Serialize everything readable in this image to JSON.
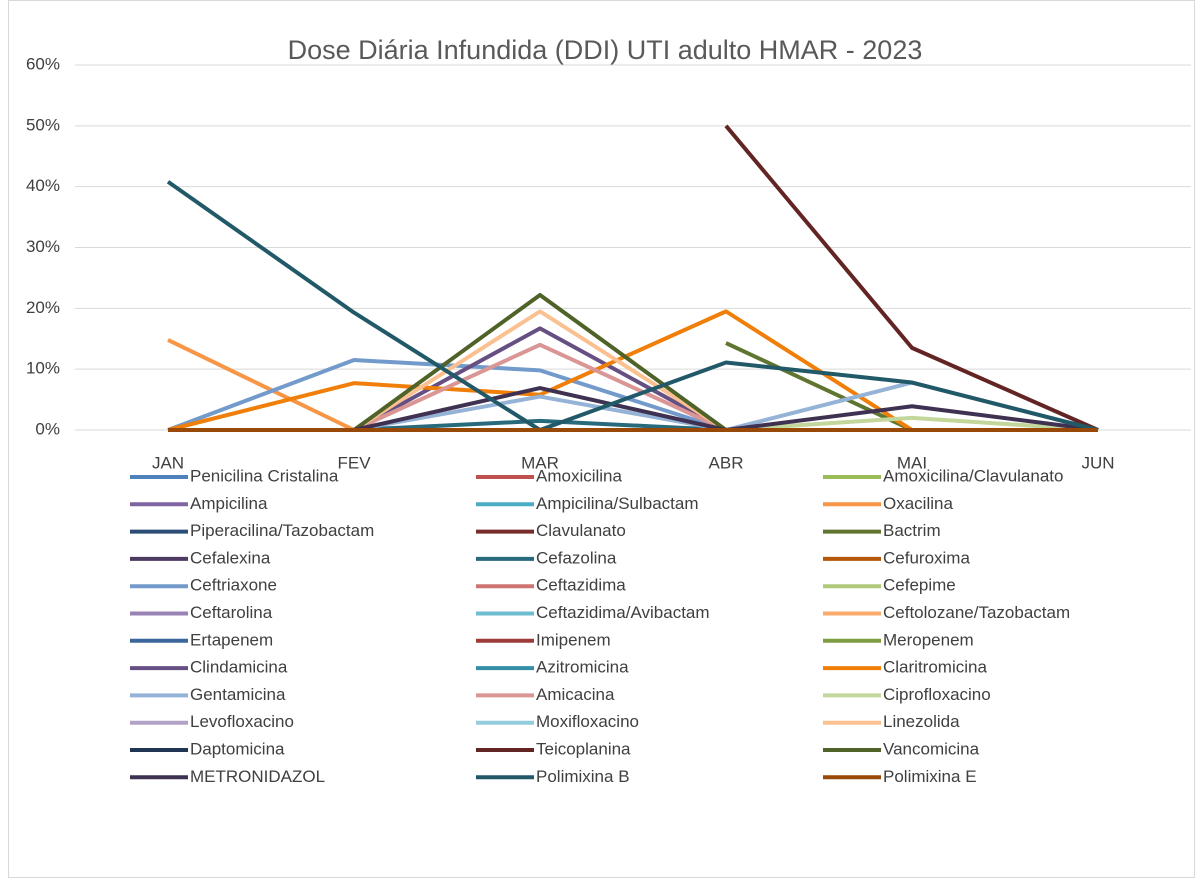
{
  "chart_data": {
    "type": "line",
    "title": "Dose Diária Infundida (DDI) UTI adulto HMAR - 2023",
    "categories": [
      "JAN",
      "FEV",
      "MAR",
      "ABR",
      "MAI",
      "JUN"
    ],
    "ylim": [
      0,
      60
    ],
    "yticks": [
      {
        "value": 0,
        "label": "0%"
      },
      {
        "value": 10,
        "label": "10%"
      },
      {
        "value": 20,
        "label": "20%"
      },
      {
        "value": 30,
        "label": "30%"
      },
      {
        "value": 40,
        "label": "40%"
      },
      {
        "value": 50,
        "label": "50%"
      },
      {
        "value": 60,
        "label": "60%"
      }
    ],
    "grid": true,
    "legend": "bottom",
    "series": [
      {
        "name": "Penicilina Cristalina",
        "color": "#4f81bd",
        "values": [
          0,
          0,
          0,
          0,
          0,
          0
        ]
      },
      {
        "name": "Amoxicilina",
        "color": "#c0504d",
        "values": [
          0,
          0,
          0,
          0,
          0,
          0
        ]
      },
      {
        "name": "Amoxicilina/Clavulanato",
        "color": "#9bbb59",
        "values": [
          0,
          0,
          0,
          0,
          0,
          0
        ]
      },
      {
        "name": "Ampicilina",
        "color": "#8064a2",
        "values": [
          0,
          0,
          0,
          0,
          0,
          0
        ]
      },
      {
        "name": "Ampicilina/Sulbactam",
        "color": "#4bacc6",
        "values": [
          0,
          0,
          0,
          0,
          0,
          0
        ]
      },
      {
        "name": "Oxacilina",
        "color": "#f79646",
        "values": [
          14.8,
          0,
          0,
          0,
          0,
          0
        ]
      },
      {
        "name": "Piperacilina/Tazobactam",
        "color": "#2c4d75",
        "values": [
          0,
          0,
          0,
          0,
          0,
          0
        ]
      },
      {
        "name": "Clavulanato",
        "color": "#772c2a",
        "values": [
          0,
          0,
          0,
          0,
          0,
          0
        ]
      },
      {
        "name": "Bactrim",
        "color": "#5f7530",
        "values": [
          null,
          null,
          null,
          14.3,
          0,
          null
        ]
      },
      {
        "name": "Cefalexina",
        "color": "#4d3b62",
        "values": [
          0,
          0,
          0,
          0,
          0,
          0
        ]
      },
      {
        "name": "Cefazolina",
        "color": "#276a7c",
        "values": [
          0,
          0,
          1.5,
          0,
          0,
          0
        ]
      },
      {
        "name": "Cefuroxima",
        "color": "#b65708",
        "values": [
          0,
          0,
          0,
          0,
          0,
          0
        ]
      },
      {
        "name": "Ceftriaxone",
        "color": "#729aca",
        "values": [
          0,
          11.5,
          9.8,
          0,
          0,
          0
        ]
      },
      {
        "name": "Ceftazidima",
        "color": "#cd7371",
        "values": [
          0,
          0,
          0,
          0,
          0,
          0
        ]
      },
      {
        "name": "Cefepime",
        "color": "#afc97a",
        "values": [
          0,
          0,
          0,
          0,
          0,
          0
        ]
      },
      {
        "name": "Ceftarolina",
        "color": "#9983b5",
        "values": [
          0,
          0,
          0,
          0,
          0,
          0
        ]
      },
      {
        "name": "Ceftazidima/Avibactam",
        "color": "#6fbdd1",
        "values": [
          0,
          0,
          0,
          0,
          0,
          0
        ]
      },
      {
        "name": "Ceftolozane/Tazobactam",
        "color": "#f9ab6b",
        "values": [
          0,
          0,
          0,
          0,
          0,
          0
        ]
      },
      {
        "name": "Ertapenem",
        "color": "#3a679c",
        "values": [
          0,
          0,
          0,
          0,
          0,
          0
        ]
      },
      {
        "name": "Imipenem",
        "color": "#9e3b38",
        "values": [
          0,
          0,
          0,
          0,
          0,
          0
        ]
      },
      {
        "name": "Meropenem",
        "color": "#7e9c40",
        "values": [
          0,
          0,
          0,
          0,
          0,
          0
        ]
      },
      {
        "name": "Clindamicina",
        "color": "#664f83",
        "values": [
          0,
          0,
          16.7,
          0,
          0,
          0
        ]
      },
      {
        "name": "Azitromicina",
        "color": "#358ea6",
        "values": [
          0,
          0,
          0,
          0,
          0,
          0
        ]
      },
      {
        "name": "Claritromicina",
        "color": "#f07f09",
        "values": [
          0,
          7.7,
          5.8,
          19.5,
          0,
          0
        ]
      },
      {
        "name": "Gentamicina",
        "color": "#95b3d7",
        "values": [
          0,
          0,
          5.5,
          0,
          7.8,
          0
        ]
      },
      {
        "name": "Amicacina",
        "color": "#d99694",
        "values": [
          0,
          0,
          14,
          0,
          0,
          0
        ]
      },
      {
        "name": "Ciprofloxacino",
        "color": "#c3d69b",
        "values": [
          0,
          0,
          0,
          0,
          2,
          0
        ]
      },
      {
        "name": "Levofloxacino",
        "color": "#b3a2c7",
        "values": [
          0,
          0,
          0,
          0,
          0,
          0
        ]
      },
      {
        "name": "Moxifloxacino",
        "color": "#93cddd",
        "values": [
          0,
          0,
          0,
          0,
          0,
          0
        ]
      },
      {
        "name": "Linezolida",
        "color": "#fac090",
        "values": [
          0,
          0,
          19.5,
          0,
          0,
          0
        ]
      },
      {
        "name": "Daptomicina",
        "color": "#1f3553",
        "values": [
          0,
          0,
          0,
          0,
          0,
          0
        ]
      },
      {
        "name": "Teicoplanina",
        "color": "#632523",
        "values": [
          null,
          null,
          null,
          50,
          13.5,
          0
        ]
      },
      {
        "name": "Vancomicina",
        "color": "#4f6228",
        "values": [
          null,
          0,
          22.2,
          0,
          null,
          null
        ]
      },
      {
        "name": "METRONIDAZOL",
        "color": "#3f3151",
        "values": [
          0,
          0,
          6.9,
          0,
          3.9,
          0
        ]
      },
      {
        "name": "Polimixina B",
        "color": "#215968",
        "values": [
          40.8,
          19.3,
          0,
          11.1,
          7.8,
          0
        ]
      },
      {
        "name": "Polimixina E",
        "color": "#984807",
        "values": [
          0,
          0,
          0,
          0,
          0,
          0
        ]
      }
    ]
  }
}
